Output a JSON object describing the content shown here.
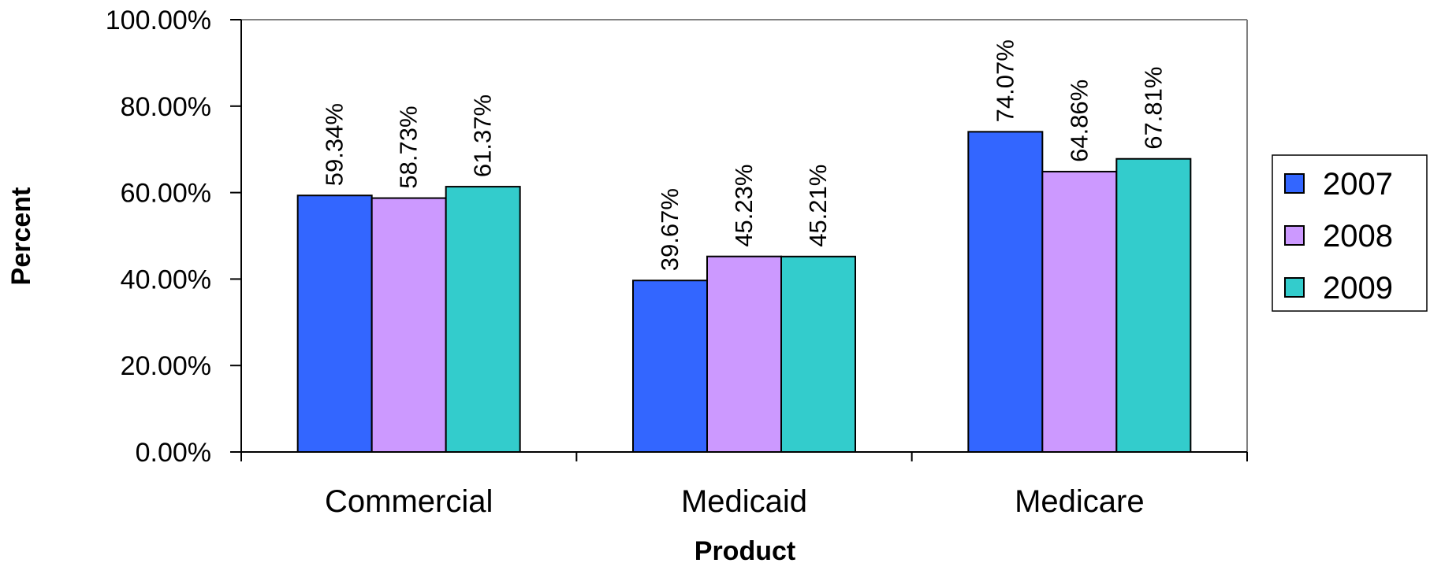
{
  "chart_data": {
    "type": "bar",
    "categories": [
      "Commercial",
      "Medicaid",
      "Medicare"
    ],
    "series": [
      {
        "name": "2007",
        "values": [
          59.34,
          39.67,
          74.07
        ],
        "labels": [
          "59.34%",
          "39.67%",
          "74.07%"
        ],
        "color": "#3366ff"
      },
      {
        "name": "2008",
        "values": [
          58.73,
          45.23,
          64.86
        ],
        "labels": [
          "58.73%",
          "45.23%",
          "64.86%"
        ],
        "color": "#cc99ff"
      },
      {
        "name": "2009",
        "values": [
          61.37,
          45.21,
          67.81
        ],
        "labels": [
          "61.37%",
          "45.21%",
          "67.81%"
        ],
        "color": "#33cccc"
      }
    ],
    "xlabel": "Product",
    "ylabel": "Percent",
    "ylim": [
      0,
      100
    ],
    "yticks": [
      "0.00%",
      "20.00%",
      "40.00%",
      "60.00%",
      "80.00%",
      "100.00%"
    ],
    "grid": false,
    "legend": "right"
  }
}
